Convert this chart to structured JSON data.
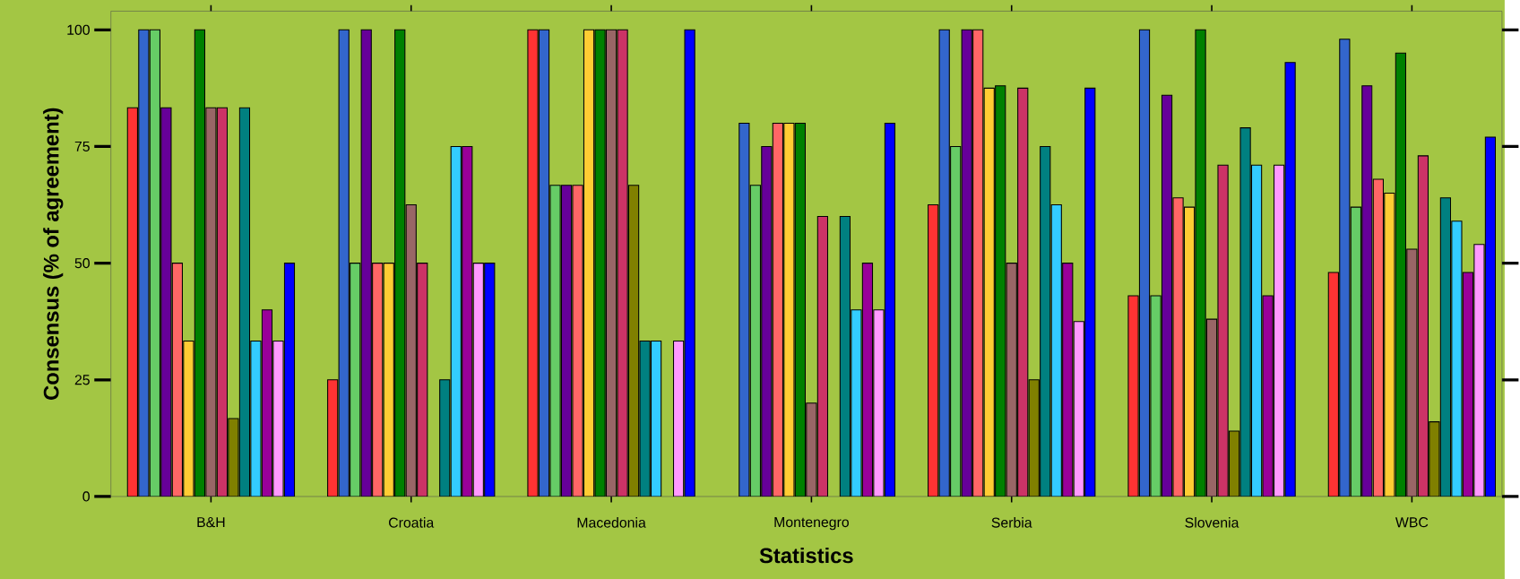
{
  "chart_data": {
    "type": "bar",
    "xlabel": "Statistics",
    "ylabel": "Consensus (% of agreement)",
    "categories": [
      "B&H",
      "Croatia",
      "Macedonia",
      "Montenegro",
      "Serbia",
      "Slovenia",
      "WBC"
    ],
    "ylim": [
      0,
      104
    ],
    "yticks": [
      0,
      25,
      50,
      75,
      100
    ],
    "series": [
      {
        "color": "#ff3333",
        "values": [
          83.3,
          25,
          100,
          null,
          62.5,
          43,
          48
        ]
      },
      {
        "color": "#3366cc",
        "values": [
          100,
          100,
          100,
          80,
          100,
          100,
          98
        ]
      },
      {
        "color": "#66cc66",
        "values": [
          100,
          50,
          66.7,
          66.7,
          75,
          43,
          62
        ]
      },
      {
        "color": "#660099",
        "values": [
          83.3,
          100,
          66.7,
          75,
          100,
          86,
          88
        ]
      },
      {
        "color": "#ff6666",
        "values": [
          50,
          50,
          66.7,
          80,
          100,
          64,
          68
        ]
      },
      {
        "color": "#ffcc33",
        "values": [
          33.3,
          50,
          100,
          80,
          87.5,
          62,
          65
        ]
      },
      {
        "color": "#008000",
        "values": [
          100,
          100,
          100,
          80,
          88,
          100,
          95
        ]
      },
      {
        "color": "#996666",
        "values": [
          83.3,
          62.5,
          100,
          20,
          50,
          38,
          53
        ]
      },
      {
        "color": "#cc3366",
        "values": [
          83.3,
          50,
          100,
          60,
          87.5,
          71,
          73
        ]
      },
      {
        "color": "#808000",
        "values": [
          16.7,
          null,
          66.7,
          null,
          25,
          14,
          16
        ]
      },
      {
        "color": "#008080",
        "values": [
          83.3,
          25,
          33.3,
          60,
          75,
          79,
          64
        ]
      },
      {
        "color": "#33ccff",
        "values": [
          33.3,
          75,
          33.3,
          40,
          62.5,
          71,
          59
        ]
      },
      {
        "color": "#990099",
        "values": [
          40,
          75,
          null,
          50,
          50,
          43,
          48
        ]
      },
      {
        "color": "#ff99ff",
        "values": [
          33.3,
          50,
          33.3,
          40,
          37.5,
          71,
          54
        ]
      },
      {
        "color": "#0000ff",
        "values": [
          50,
          50,
          100,
          80,
          87.5,
          93,
          77
        ]
      }
    ]
  }
}
